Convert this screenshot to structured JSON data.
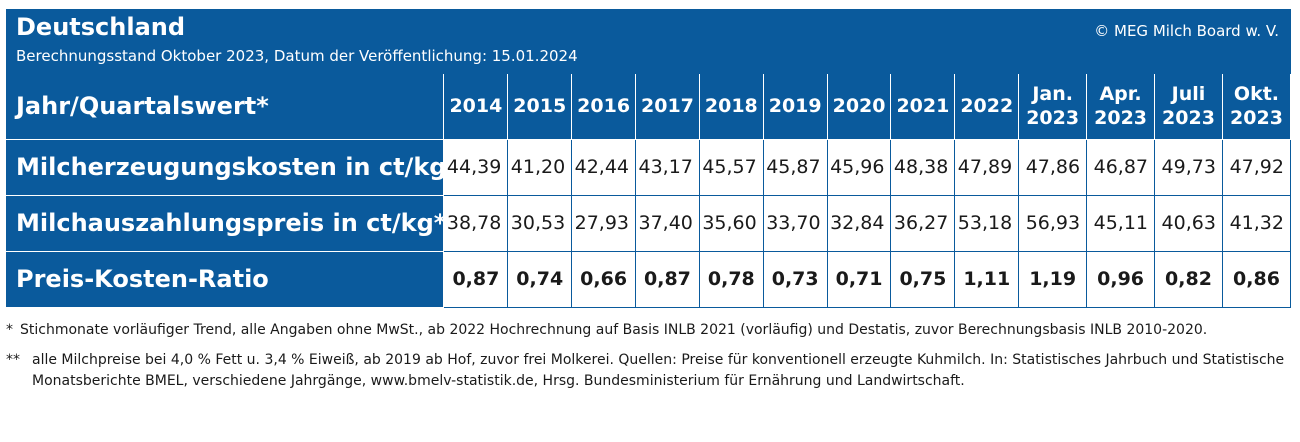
{
  "header": {
    "title": "Deutschland",
    "subtitle": "Berechnungsstand Oktober 2023, Datum der Veröffentlichung: 15.01.2024",
    "copyright": "© MEG Milch Board w. V."
  },
  "chart_data": {
    "type": "table",
    "corner_label": "Jahr/Quartalswert*",
    "columns": [
      {
        "line1": "2014",
        "line2": ""
      },
      {
        "line1": "2015",
        "line2": ""
      },
      {
        "line1": "2016",
        "line2": ""
      },
      {
        "line1": "2017",
        "line2": ""
      },
      {
        "line1": "2018",
        "line2": ""
      },
      {
        "line1": "2019",
        "line2": ""
      },
      {
        "line1": "2020",
        "line2": ""
      },
      {
        "line1": "2021",
        "line2": ""
      },
      {
        "line1": "2022",
        "line2": ""
      },
      {
        "line1": "Jan.",
        "line2": "2023"
      },
      {
        "line1": "Apr.",
        "line2": "2023"
      },
      {
        "line1": "Juli",
        "line2": "2023"
      },
      {
        "line1": "Okt.",
        "line2": "2023"
      }
    ],
    "rows": [
      {
        "label": "Milcherzeugungskosten in ct/kg",
        "values": [
          "44,39",
          "41,20",
          "42,44",
          "43,17",
          "45,57",
          "45,87",
          "45,96",
          "48,38",
          "47,89",
          "47,86",
          "46,87",
          "49,73",
          "47,92"
        ]
      },
      {
        "label": "Milchauszahlungspreis in ct/kg**",
        "values": [
          "38,78",
          "30,53",
          "27,93",
          "37,40",
          "35,60",
          "33,70",
          "32,84",
          "36,27",
          "53,18",
          "56,93",
          "45,11",
          "40,63",
          "41,32"
        ]
      },
      {
        "label": "Preis-Kosten-Ratio",
        "values": [
          "0,87",
          "0,74",
          "0,66",
          "0,87",
          "0,78",
          "0,73",
          "0,71",
          "0,75",
          "1,11",
          "1,19",
          "0,96",
          "0,82",
          "0,86"
        ]
      }
    ]
  },
  "footnotes": [
    {
      "mark": "*",
      "text": "Stichmonate vorläufiger Trend, alle Angaben ohne MwSt., ab 2022 Hochrechnung auf Basis INLB 2021 (vorläufig) und Destatis, zuvor Berechnungsbasis INLB 2010-2020."
    },
    {
      "mark": "**",
      "text": "alle Milchpreise bei 4,0 % Fett u. 3,4 % Eiweiß, ab 2019 ab Hof, zuvor frei Molkerei. Quellen: Preise für konventionell erzeugte Kuhmilch. In: Statistisches Jahrbuch und Statistische Monatsberichte BMEL, verschiedene Jahrgänge, www.bmelv-statistik.de, Hrsg. Bundesministerium für Ernährung und Landwirtschaft."
    }
  ]
}
